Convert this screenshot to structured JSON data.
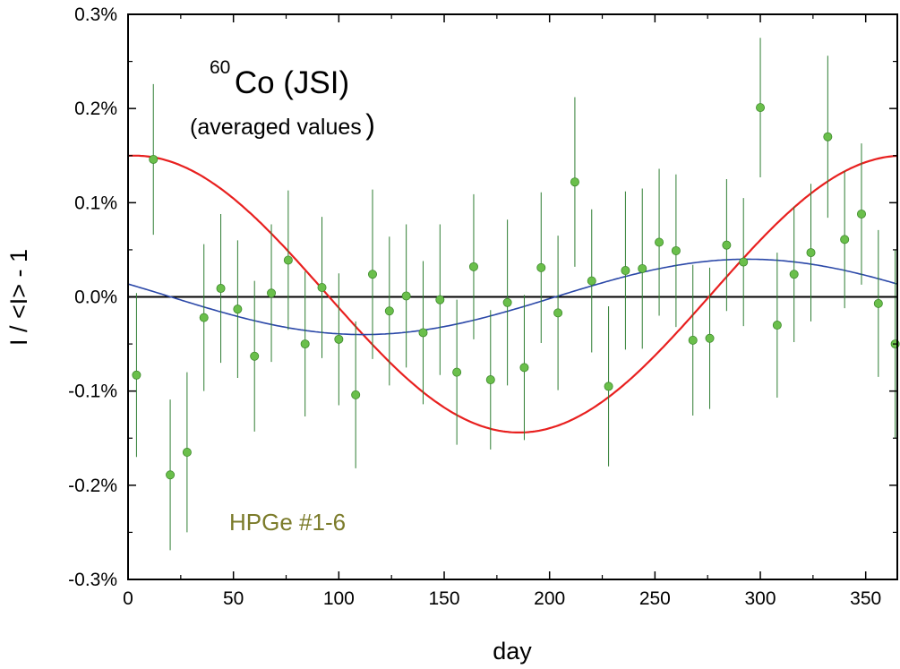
{
  "chart_data": {
    "type": "scatter",
    "title_superscript": "60",
    "title_main": "Co (JSI)",
    "subtitle": "(averaged values",
    "subtitle_close": ")",
    "annotation": "HPGe #1-6",
    "xlabel": "day",
    "ylabel": "I / <I> - 1",
    "xlim": [
      0,
      365
    ],
    "ylim": [
      -0.3,
      0.3
    ],
    "x_ticks": [
      0,
      50,
      100,
      150,
      200,
      250,
      300,
      350
    ],
    "x_tick_labels": [
      "0",
      "50",
      "100",
      "150",
      "200",
      "250",
      "300",
      "350"
    ],
    "y_ticks": [
      -0.3,
      -0.2,
      -0.1,
      0.0,
      0.1,
      0.2,
      0.3
    ],
    "y_tick_labels": [
      "-0.3%",
      "-0.2%",
      "-0.1%",
      "0.0%",
      "0.1%",
      "0.2%",
      "0.3%"
    ],
    "colors": {
      "points": "#6abf4b",
      "point_edge": "#3e8a2c",
      "errorbars": "#2e7d32",
      "red_curve": "#e8201f",
      "blue_curve": "#2b48a8",
      "annotation": "#7b7b2a",
      "zero_line": "#000000"
    },
    "points": [
      {
        "x": 4,
        "y": -0.083,
        "err": 0.087
      },
      {
        "x": 12,
        "y": 0.146,
        "err": 0.08
      },
      {
        "x": 20,
        "y": -0.189,
        "err": 0.08
      },
      {
        "x": 28,
        "y": -0.165,
        "err": 0.085
      },
      {
        "x": 36,
        "y": -0.022,
        "err": 0.078
      },
      {
        "x": 44,
        "y": 0.009,
        "err": 0.079
      },
      {
        "x": 52,
        "y": -0.013,
        "err": 0.073
      },
      {
        "x": 60,
        "y": -0.063,
        "err": 0.08
      },
      {
        "x": 68,
        "y": 0.004,
        "err": 0.073
      },
      {
        "x": 76,
        "y": 0.039,
        "err": 0.074
      },
      {
        "x": 84,
        "y": -0.05,
        "err": 0.077
      },
      {
        "x": 92,
        "y": 0.01,
        "err": 0.075
      },
      {
        "x": 100,
        "y": -0.045,
        "err": 0.07
      },
      {
        "x": 108,
        "y": -0.104,
        "err": 0.078
      },
      {
        "x": 116,
        "y": 0.024,
        "err": 0.09
      },
      {
        "x": 124,
        "y": -0.015,
        "err": 0.079
      },
      {
        "x": 132,
        "y": 0.001,
        "err": 0.076
      },
      {
        "x": 140,
        "y": -0.038,
        "err": 0.076
      },
      {
        "x": 148,
        "y": -0.003,
        "err": 0.08
      },
      {
        "x": 156,
        "y": -0.08,
        "err": 0.077
      },
      {
        "x": 164,
        "y": 0.032,
        "err": 0.077
      },
      {
        "x": 172,
        "y": -0.088,
        "err": 0.074
      },
      {
        "x": 180,
        "y": -0.006,
        "err": 0.088
      },
      {
        "x": 188,
        "y": -0.075,
        "err": 0.077
      },
      {
        "x": 196,
        "y": 0.031,
        "err": 0.08
      },
      {
        "x": 204,
        "y": -0.017,
        "err": 0.082
      },
      {
        "x": 212,
        "y": 0.122,
        "err": 0.09
      },
      {
        "x": 220,
        "y": 0.017,
        "err": 0.076
      },
      {
        "x": 228,
        "y": -0.095,
        "err": 0.085
      },
      {
        "x": 236,
        "y": 0.028,
        "err": 0.084
      },
      {
        "x": 244,
        "y": 0.03,
        "err": 0.085
      },
      {
        "x": 252,
        "y": 0.058,
        "err": 0.078
      },
      {
        "x": 260,
        "y": 0.049,
        "err": 0.081
      },
      {
        "x": 268,
        "y": -0.046,
        "err": 0.08
      },
      {
        "x": 276,
        "y": -0.044,
        "err": 0.075
      },
      {
        "x": 284,
        "y": 0.055,
        "err": 0.07
      },
      {
        "x": 292,
        "y": 0.037,
        "err": 0.068
      },
      {
        "x": 300,
        "y": 0.201,
        "err": 0.074
      },
      {
        "x": 308,
        "y": -0.03,
        "err": 0.077
      },
      {
        "x": 316,
        "y": 0.024,
        "err": 0.072
      },
      {
        "x": 324,
        "y": 0.047,
        "err": 0.073
      },
      {
        "x": 332,
        "y": 0.17,
        "err": 0.086
      },
      {
        "x": 340,
        "y": 0.061,
        "err": 0.073
      },
      {
        "x": 348,
        "y": 0.088,
        "err": 0.075
      },
      {
        "x": 356,
        "y": -0.007,
        "err": 0.078
      },
      {
        "x": 364,
        "y": -0.05,
        "err": 0.1
      }
    ],
    "curves": [
      {
        "name": "red",
        "amplitude": 0.147,
        "offset": 0.003,
        "phase_day": 3
      },
      {
        "name": "blue",
        "amplitude": 0.04,
        "offset": 0.0,
        "phase_day": 294
      }
    ]
  }
}
